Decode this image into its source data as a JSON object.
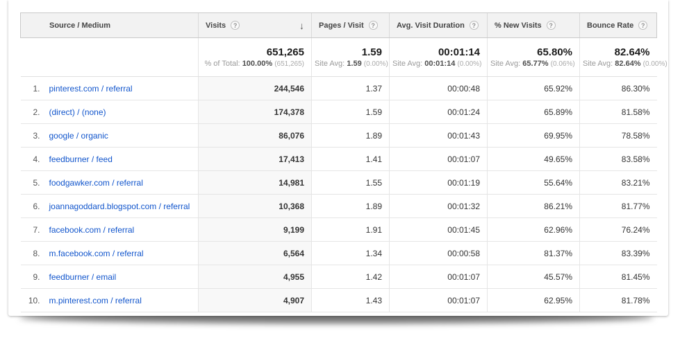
{
  "colors": {
    "link": "#1155cc",
    "header_bg": "#f2f2f2",
    "border": "#e5e5e5",
    "sorted_column_bg": "#f8f8f8"
  },
  "table": {
    "help_glyph": "?",
    "sort_desc_glyph": "↓",
    "columns": [
      {
        "label": "Source / Medium"
      },
      {
        "label": "Visits"
      },
      {
        "label": "Pages / Visit"
      },
      {
        "label": "Avg. Visit Duration"
      },
      {
        "label": "% New Visits"
      },
      {
        "label": "Bounce Rate"
      }
    ],
    "sorted_column": "Visits",
    "summary": [
      {
        "value": "651,265",
        "sub_label": "% of Total:",
        "sub_value": "100.00%",
        "sub_paren": "(651,265)"
      },
      {
        "value": "1.59",
        "sub_label": "Site Avg:",
        "sub_value": "1.59",
        "sub_paren": "(0.00%)"
      },
      {
        "value": "00:01:14",
        "sub_label": "Site Avg:",
        "sub_value": "00:01:14",
        "sub_paren": "(0.00%)"
      },
      {
        "value": "65.80%",
        "sub_label": "Site Avg:",
        "sub_value": "65.77%",
        "sub_paren": "(0.06%)"
      },
      {
        "value": "82.64%",
        "sub_label": "Site Avg:",
        "sub_value": "82.64%",
        "sub_paren": "(0.00%)"
      }
    ],
    "rows": [
      {
        "rank": "1.",
        "source": "pinterest.com / referral",
        "visits": "244,546",
        "pages": "1.37",
        "duration": "00:00:48",
        "new_visits": "65.92%",
        "bounce": "86.30%"
      },
      {
        "rank": "2.",
        "source": "(direct) / (none)",
        "visits": "174,378",
        "pages": "1.59",
        "duration": "00:01:24",
        "new_visits": "65.89%",
        "bounce": "81.58%"
      },
      {
        "rank": "3.",
        "source": "google / organic",
        "visits": "86,076",
        "pages": "1.89",
        "duration": "00:01:43",
        "new_visits": "69.95%",
        "bounce": "78.58%"
      },
      {
        "rank": "4.",
        "source": "feedburner / feed",
        "visits": "17,413",
        "pages": "1.41",
        "duration": "00:01:07",
        "new_visits": "49.65%",
        "bounce": "83.58%"
      },
      {
        "rank": "5.",
        "source": "foodgawker.com / referral",
        "visits": "14,981",
        "pages": "1.55",
        "duration": "00:01:19",
        "new_visits": "55.64%",
        "bounce": "83.21%"
      },
      {
        "rank": "6.",
        "source": "joannagoddard.blogspot.com / referral",
        "visits": "10,368",
        "pages": "1.89",
        "duration": "00:01:32",
        "new_visits": "86.21%",
        "bounce": "81.77%"
      },
      {
        "rank": "7.",
        "source": "facebook.com / referral",
        "visits": "9,199",
        "pages": "1.91",
        "duration": "00:01:45",
        "new_visits": "62.96%",
        "bounce": "76.24%"
      },
      {
        "rank": "8.",
        "source": "m.facebook.com / referral",
        "visits": "6,564",
        "pages": "1.34",
        "duration": "00:00:58",
        "new_visits": "81.37%",
        "bounce": "83.39%"
      },
      {
        "rank": "9.",
        "source": "feedburner / email",
        "visits": "4,955",
        "pages": "1.42",
        "duration": "00:01:07",
        "new_visits": "45.57%",
        "bounce": "81.45%"
      },
      {
        "rank": "10.",
        "source": "m.pinterest.com / referral",
        "visits": "4,907",
        "pages": "1.43",
        "duration": "00:01:07",
        "new_visits": "62.95%",
        "bounce": "81.78%"
      }
    ]
  }
}
